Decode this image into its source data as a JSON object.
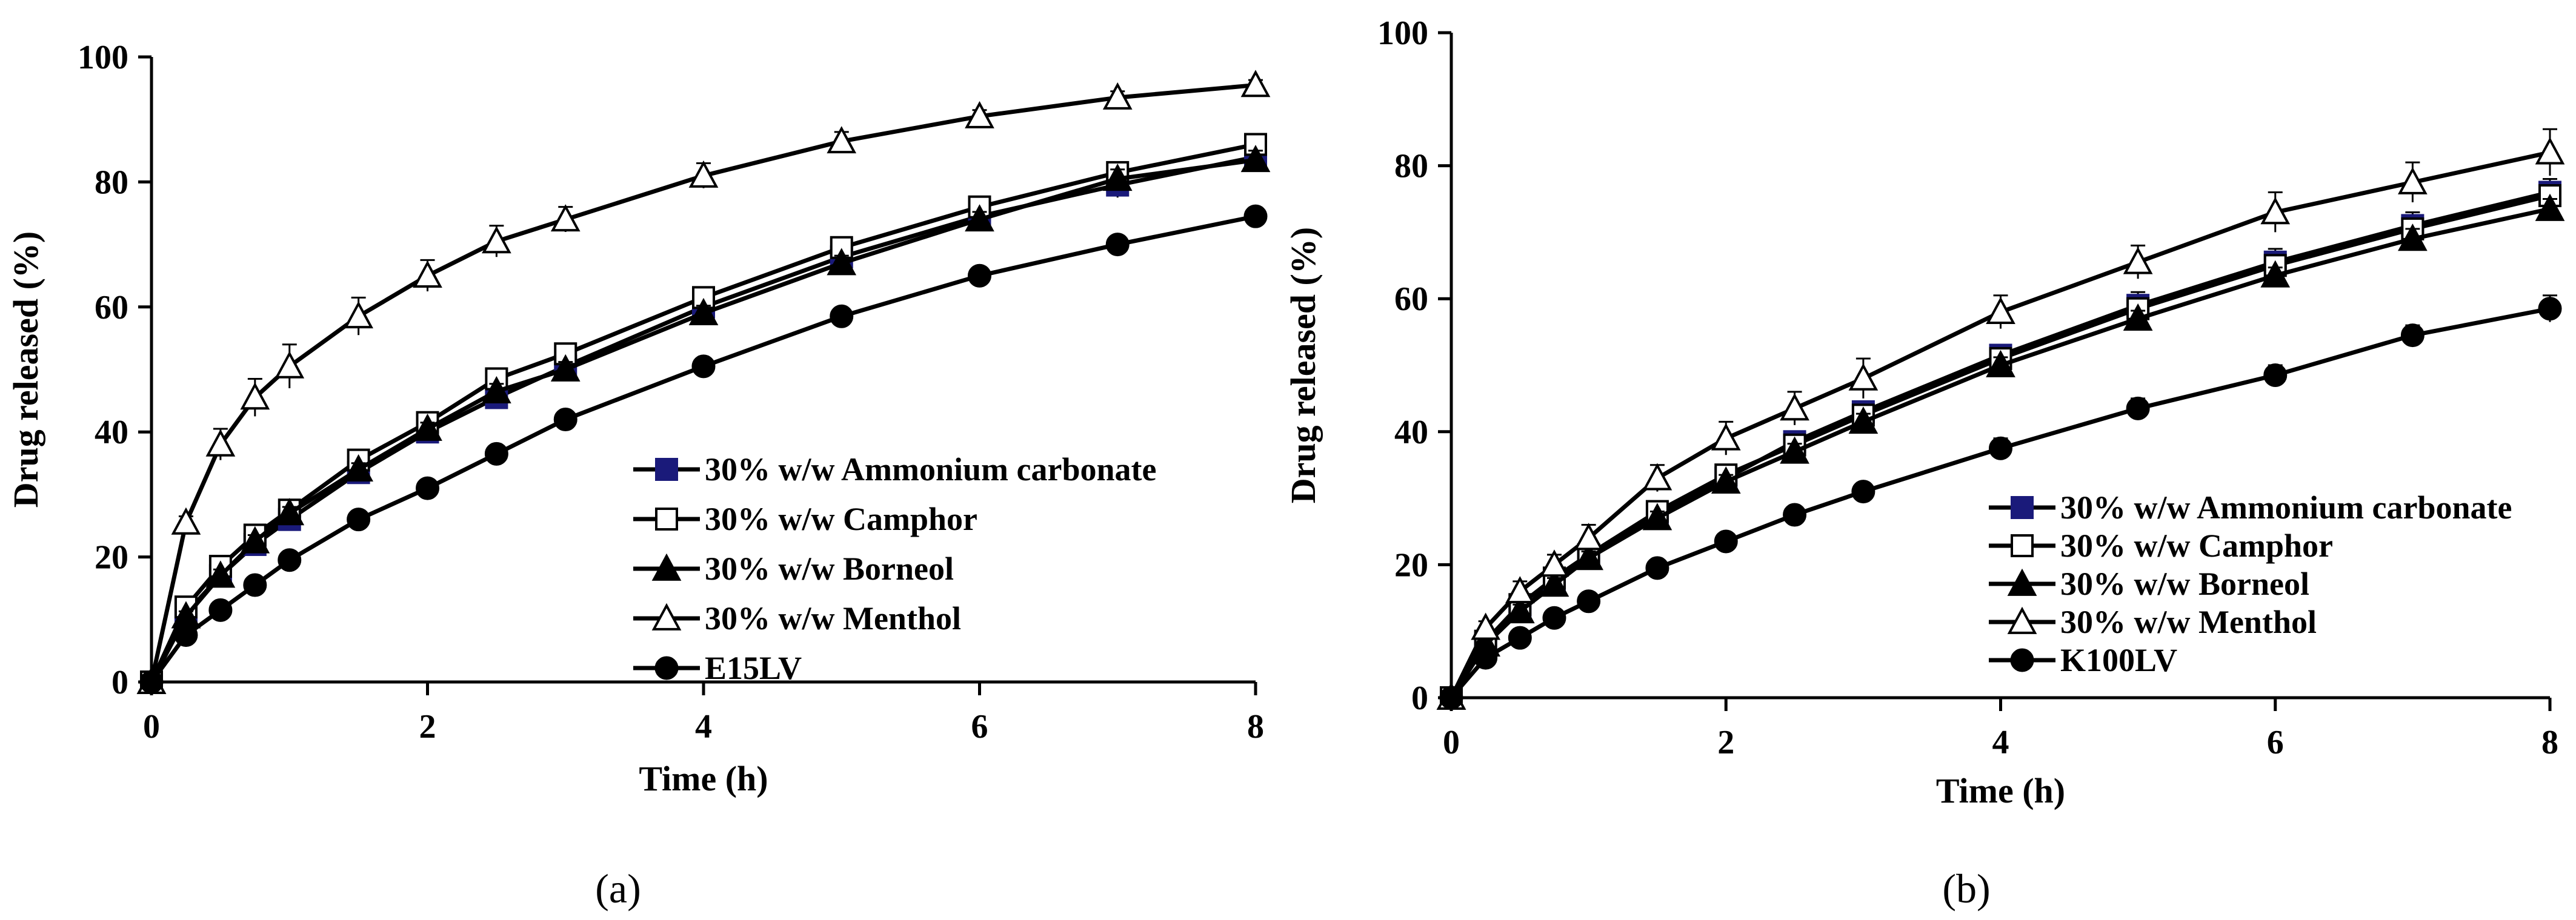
{
  "chart_data": [
    {
      "type": "line",
      "panel_label": "(a)",
      "xlabel": "Time (h)",
      "ylabel": "Drug released (%)",
      "xlim": [
        0,
        8
      ],
      "ylim": [
        0,
        100
      ],
      "xticks": [
        0,
        2,
        4,
        6,
        8
      ],
      "yticks": [
        0,
        20,
        40,
        60,
        80,
        100
      ],
      "x": [
        0,
        0.25,
        0.5,
        0.75,
        1,
        1.5,
        2,
        2.5,
        3,
        4,
        5,
        6,
        7,
        8
      ],
      "legend_position": "bottom-right",
      "series": [
        {
          "name": "30% w/w Ammonium carbonate",
          "marker": "square-filled",
          "color": "#1a1a7a",
          "values": [
            0,
            11,
            17,
            22,
            26,
            33.5,
            40,
            45.5,
            50.5,
            60,
            68,
            74.5,
            79.5,
            84
          ],
          "errors": [
            0,
            0.8,
            1,
            1,
            1,
            1,
            1.5,
            1.8,
            1.5,
            1.5,
            1.5,
            1.8,
            2,
            2
          ]
        },
        {
          "name": "30% w/w Camphor",
          "marker": "square-open",
          "color": "#000000",
          "values": [
            0,
            12,
            18.5,
            23.5,
            27.5,
            35.5,
            41.5,
            48.5,
            52.5,
            61.5,
            69.5,
            76,
            81.5,
            86
          ],
          "errors": [
            0,
            0.8,
            1,
            1,
            1,
            1,
            1.2,
            1.5,
            1.5,
            1.2,
            1.2,
            1.2,
            1.5,
            1.5
          ]
        },
        {
          "name": "30% w/w Borneol",
          "marker": "triangle-filled",
          "color": "#000000",
          "values": [
            0,
            10.5,
            17,
            22.5,
            27,
            34,
            40.5,
            46.5,
            50,
            59,
            67,
            74,
            80.5,
            83.5
          ],
          "errors": [
            0,
            0.8,
            1,
            1,
            1,
            1,
            1,
            1.2,
            1.2,
            1.2,
            1.2,
            1.2,
            1.5,
            1.5
          ]
        },
        {
          "name": "30% w/w Menthol",
          "marker": "triangle-open",
          "color": "#000000",
          "values": [
            0,
            25.5,
            38,
            45.5,
            50.5,
            58.5,
            65,
            70.5,
            74,
            81,
            86.5,
            90.5,
            93.5,
            95.5
          ],
          "errors": [
            0,
            1,
            2.5,
            3,
            3.5,
            3,
            2.5,
            2.5,
            2,
            2,
            1.5,
            1,
            1,
            0.8
          ]
        },
        {
          "name": "E15LV",
          "marker": "circle-filled",
          "color": "#000000",
          "values": [
            0,
            7.5,
            11.5,
            15.5,
            19.5,
            26,
            31,
            36.5,
            42,
            50.5,
            58.5,
            65,
            70,
            74.5
          ],
          "errors": [
            0,
            0.5,
            0.5,
            0.5,
            0.8,
            0.8,
            0.8,
            1,
            1,
            1,
            1,
            1,
            1,
            1
          ]
        }
      ]
    },
    {
      "type": "line",
      "panel_label": "(b)",
      "xlabel": "Time (h)",
      "ylabel": "Drug released (%)",
      "xlim": [
        0,
        8
      ],
      "ylim": [
        0,
        100
      ],
      "xticks": [
        0,
        2,
        4,
        6,
        8
      ],
      "yticks": [
        0,
        20,
        40,
        60,
        80,
        100
      ],
      "x": [
        0,
        0.25,
        0.5,
        0.75,
        1,
        1.5,
        2,
        2.5,
        3,
        4,
        5,
        6,
        7,
        8
      ],
      "legend_position": "bottom-right",
      "series": [
        {
          "name": "30% w/w Ammonium carbonate",
          "marker": "square-filled",
          "color": "#1a1a7a",
          "values": [
            0,
            8,
            13,
            17.5,
            21,
            27.5,
            33,
            38.5,
            43,
            51.5,
            59,
            65.5,
            71,
            76
          ],
          "errors": [
            0,
            0.8,
            1,
            1,
            1,
            1.2,
            1.5,
            1.5,
            1.5,
            1.5,
            2,
            2,
            2,
            2
          ]
        },
        {
          "name": "30% w/w Camphor",
          "marker": "square-open",
          "color": "#000000",
          "values": [
            0,
            8.5,
            14,
            18,
            21.5,
            28,
            33.5,
            38,
            42.5,
            51,
            58.5,
            65,
            70.5,
            75.5
          ],
          "errors": [
            0,
            0.8,
            1,
            1,
            1,
            1.2,
            1.5,
            1.5,
            1.5,
            1.5,
            1.5,
            1.5,
            1.5,
            1.5
          ]
        },
        {
          "name": "30% w/w Borneol",
          "marker": "triangle-filled",
          "color": "#000000",
          "values": [
            0,
            8,
            13,
            17,
            21,
            27,
            32.5,
            37,
            41.5,
            50,
            57,
            63.5,
            69,
            73.5
          ],
          "errors": [
            0,
            0.8,
            1,
            1,
            1,
            1,
            1,
            1.2,
            1.2,
            1.2,
            1.2,
            1.2,
            1.5,
            1.5
          ]
        },
        {
          "name": "30% w/w Menthol",
          "marker": "triangle-open",
          "color": "#000000",
          "values": [
            0,
            10.5,
            16,
            20,
            24,
            33,
            39,
            43.5,
            48,
            58,
            65.5,
            73,
            77.5,
            82
          ],
          "errors": [
            0,
            1,
            1.5,
            1.5,
            2,
            2,
            2.5,
            2.5,
            3,
            2.5,
            2.5,
            3,
            3,
            3.5
          ]
        },
        {
          "name": "K100LV",
          "marker": "circle-filled",
          "color": "#000000",
          "values": [
            0,
            6,
            9,
            12,
            14.5,
            19.5,
            23.5,
            27.5,
            31,
            37.5,
            43.5,
            48.5,
            54.5,
            58.5
          ],
          "errors": [
            0,
            0.5,
            0.5,
            0.5,
            0.8,
            0.8,
            0.8,
            1,
            1,
            1.5,
            1.5,
            1.5,
            1.5,
            2
          ]
        }
      ]
    }
  ]
}
